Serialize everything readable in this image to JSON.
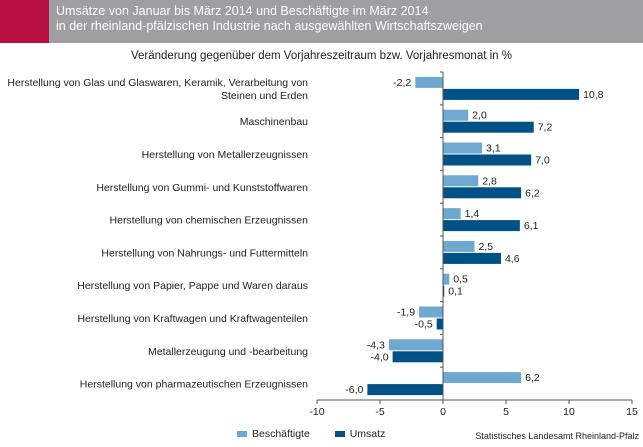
{
  "header": {
    "title_line1": "Umsätze von Januar bis März 2014 und Beschäftigte im März 2014",
    "title_line2": "in der rheinland-pfälzischen Industrie nach ausgewählten Wirtschaftszweigen"
  },
  "source": "Statistisches Landesamt Rheinland-Pfalz",
  "colors": {
    "beschaeftigte": "#6fa9cf",
    "umsatz": "#005186",
    "accent": "#b8103f",
    "header_bg": "#9e9ea3"
  },
  "chart_data": {
    "type": "bar",
    "orientation": "horizontal",
    "title": "Umsätze von Januar bis März 2014 und Beschäftigte im März 2014 in der rheinland-pfälzischen Industrie nach ausgewählten Wirtschaftszweigen",
    "subtitle": "Veränderung gegenüber dem Vorjahreszeitraum bzw. Vorjahresmonat in %",
    "categories": [
      [
        "Herstellung von Glas und Glaswaren, Keramik, Verarbeitung von",
        "Steinen und Erden"
      ],
      [
        "Maschinenbau"
      ],
      [
        "Herstellung von Metallerzeugnissen"
      ],
      [
        "Herstellung von Gummi- und Kunststoffwaren"
      ],
      [
        "Herstellung von chemischen Erzeugnissen"
      ],
      [
        "Herstellung von Nahrungs- und Futtermitteln"
      ],
      [
        "Herstellung von Papier, Pappe und Waren daraus"
      ],
      [
        "Herstellung von Kraftwagen und Kraftwagenteilen"
      ],
      [
        "Metallerzeugung und -bearbeitung"
      ],
      [
        "Herstellung von pharmazeutischen Erzeugnissen"
      ]
    ],
    "series": [
      {
        "name": "Beschäftigte",
        "values": [
          -2.2,
          2.0,
          3.1,
          2.8,
          1.4,
          2.5,
          0.5,
          -1.9,
          -4.3,
          6.2
        ],
        "labels": [
          "-2,2",
          "2,0",
          "3,1",
          "2,8",
          "1,4",
          "2,5",
          "0,5",
          "-1,9",
          "-4,3",
          "6,2"
        ]
      },
      {
        "name": "Umsatz",
        "values": [
          10.8,
          7.2,
          7.0,
          6.2,
          6.1,
          4.6,
          0.1,
          -0.5,
          -4.0,
          -6.0
        ],
        "labels": [
          "10,8",
          "7,2",
          "7,0",
          "6,2",
          "6,1",
          "4,6",
          "0,1",
          "-0,5",
          "-4,0",
          "-6,0"
        ]
      }
    ],
    "xlim": [
      -10,
      15
    ],
    "xticks": [
      -10,
      -5,
      0,
      5,
      10,
      15
    ],
    "grid": false,
    "legend": "bottom"
  }
}
